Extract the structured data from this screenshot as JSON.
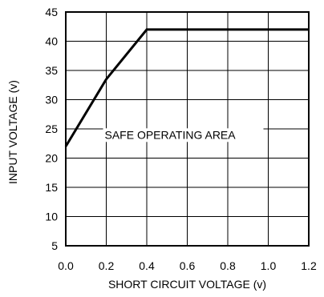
{
  "chart_data": {
    "type": "line",
    "title": "",
    "xlabel": "SHORT CIRCUIT VOLTAGE (v)",
    "ylabel": "INPUT VOLTAGE (v)",
    "xlim": [
      0.0,
      1.2
    ],
    "ylim": [
      5,
      45
    ],
    "x_ticks": [
      "0.0",
      "0.2",
      "0.4",
      "0.6",
      "0.8",
      "1.0",
      "1.2"
    ],
    "y_ticks": [
      "5",
      "10",
      "15",
      "20",
      "25",
      "30",
      "35",
      "40",
      "45"
    ],
    "grid": true,
    "legend": "none",
    "series": [
      {
        "x": [
          0.0,
          0.2,
          0.4,
          1.2
        ],
        "y": [
          22,
          33.5,
          42,
          42
        ]
      }
    ],
    "annotations": [
      {
        "text": "SAFE OPERATING AREA",
        "x": 0.2,
        "y": 24
      }
    ],
    "colors": {
      "line": "#000000",
      "grid": "#000000",
      "frame": "#000000",
      "text": "#000000"
    }
  }
}
